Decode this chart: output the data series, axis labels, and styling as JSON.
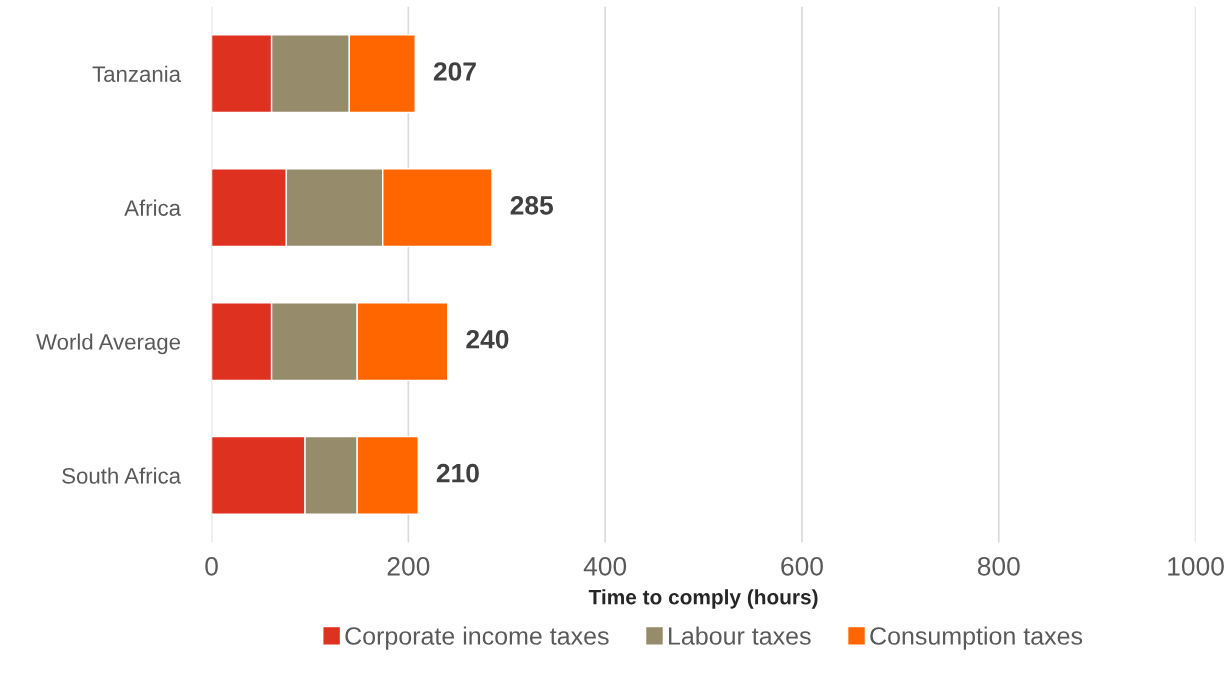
{
  "chart_data": {
    "type": "bar",
    "orientation": "horizontal",
    "stacked": true,
    "categories": [
      "Tanzania",
      "Africa",
      "World Average",
      "South Africa"
    ],
    "series": [
      {
        "name": "Corporate income taxes",
        "color": "#de3120",
        "values": [
          61,
          76,
          61,
          95
        ]
      },
      {
        "name": "Labour taxes",
        "color": "#968b6b",
        "values": [
          79,
          98,
          87,
          53
        ]
      },
      {
        "name": "Consumption taxes",
        "color": "#ff6600",
        "values": [
          67,
          111,
          92,
          62
        ]
      }
    ],
    "totals": [
      "207",
      "285",
      "240",
      "210"
    ],
    "xlabel": "Time to comply (hours)",
    "xlim": [
      0,
      1000
    ],
    "xticks": [
      0,
      200,
      400,
      600,
      800,
      1000
    ],
    "grid": "x",
    "legend": "bottom"
  }
}
